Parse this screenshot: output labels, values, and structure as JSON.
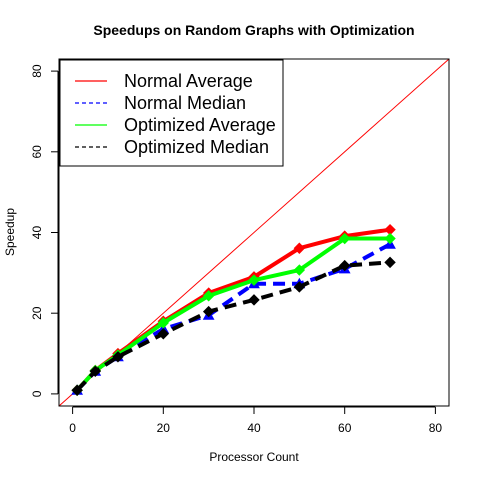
{
  "chart_data": {
    "type": "line",
    "title": "Speedups on Random Graphs with Optimization",
    "xlabel": "Processor Count",
    "ylabel": "Speedup",
    "xlim": [
      -3,
      83
    ],
    "ylim": [
      -3,
      83
    ],
    "xticks": [
      0,
      20,
      40,
      60,
      80
    ],
    "yticks": [
      0,
      20,
      40,
      60,
      80
    ],
    "reference_line": {
      "from": [
        -3,
        -3
      ],
      "to": [
        83,
        83
      ],
      "color": "#ff0000"
    },
    "legend": {
      "position": "top-left"
    },
    "series": [
      {
        "name": "Normal Average",
        "legend_style": "solid",
        "color": "#ff0000",
        "dash": "solid",
        "marker": "diamond",
        "x": [
          1,
          5,
          10,
          20,
          30,
          40,
          50,
          60,
          70
        ],
        "y": [
          0.9,
          5.8,
          10.0,
          18.0,
          25.0,
          29.0,
          36.1,
          39.1,
          40.7
        ]
      },
      {
        "name": "Normal Median",
        "legend_style": "dashed",
        "color": "#0000ff",
        "dash": "dashed",
        "marker": "triangle",
        "x": [
          1,
          5,
          10,
          20,
          30,
          40,
          50,
          60,
          70
        ],
        "y": [
          0.9,
          5.6,
          9.2,
          16.1,
          19.5,
          27.3,
          27.3,
          31.0,
          37.1
        ]
      },
      {
        "name": "Optimized Average",
        "legend_style": "solid",
        "color": "#00ff00",
        "dash": "solid",
        "marker": "diamond",
        "x": [
          1,
          5,
          10,
          20,
          30,
          40,
          50,
          60,
          70
        ],
        "y": [
          0.9,
          5.8,
          9.6,
          17.6,
          24.3,
          28.2,
          30.7,
          38.5,
          38.5
        ]
      },
      {
        "name": "Optimized Median",
        "legend_style": "dashed",
        "color": "#000000",
        "dash": "dashed",
        "marker": "diamond",
        "x": [
          1,
          5,
          10,
          20,
          30,
          40,
          50,
          60,
          70
        ],
        "y": [
          0.9,
          5.6,
          9.2,
          14.9,
          20.4,
          23.3,
          26.5,
          31.8,
          32.6
        ]
      }
    ]
  }
}
